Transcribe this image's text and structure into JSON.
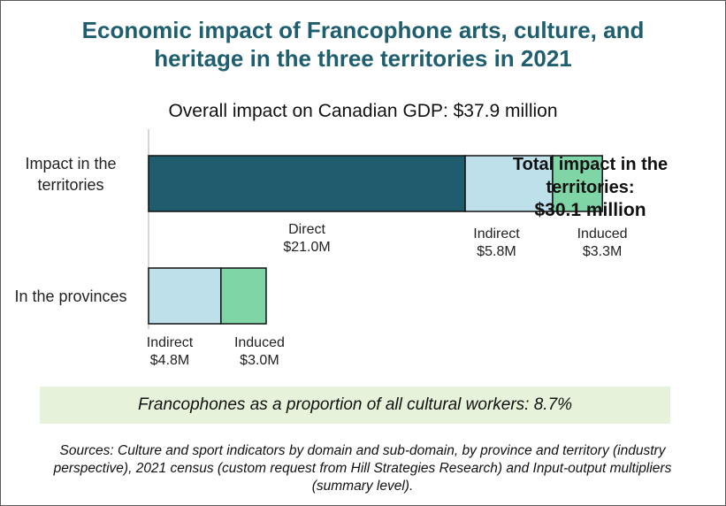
{
  "title": {
    "line1": "Economic impact of Francophone arts, culture, and",
    "line2": "heritage in the three territories in 2021"
  },
  "subtitle": "Overall impact on Canadian GDP: $37.9 million",
  "side_total": {
    "line1": "Total impact in the",
    "line2": "territories:",
    "value": "$30.1 million"
  },
  "banner": "Francophones as a proportion of all cultural workers: 8.7%",
  "sources": "Sources: Culture and sport indicators by domain and sub-domain, by province and territory (industry perspective), 2021 census (custom request from Hill Strategies Research) and Input-output multipliers (summary level).",
  "colors": {
    "title": "#1e5e6e",
    "direct": "#1e5c6e",
    "indirect": "#bde0ea",
    "induced": "#7fd5a6",
    "banner": "#e6f2d9"
  },
  "chart_data": {
    "type": "bar",
    "orientation": "horizontal",
    "stacked": true,
    "unit": "$M",
    "xlim": [
      0,
      37.9
    ],
    "categories": [
      {
        "label_lines": [
          "Impact in the",
          "territories"
        ]
      },
      {
        "label_lines": [
          "In the provinces"
        ]
      }
    ],
    "segments": [
      [
        {
          "name": "Direct",
          "value": 21.0,
          "label": "$21.0M",
          "color_key": "direct"
        },
        {
          "name": "Indirect",
          "value": 5.8,
          "label": "$5.8M",
          "color_key": "indirect"
        },
        {
          "name": "Induced",
          "value": 3.3,
          "label": "$3.3M",
          "color_key": "induced"
        }
      ],
      [
        {
          "name": "Indirect",
          "value": 4.8,
          "label": "$4.8M",
          "color_key": "indirect"
        },
        {
          "name": "Induced",
          "value": 3.0,
          "label": "$3.0M",
          "color_key": "induced"
        }
      ]
    ]
  }
}
